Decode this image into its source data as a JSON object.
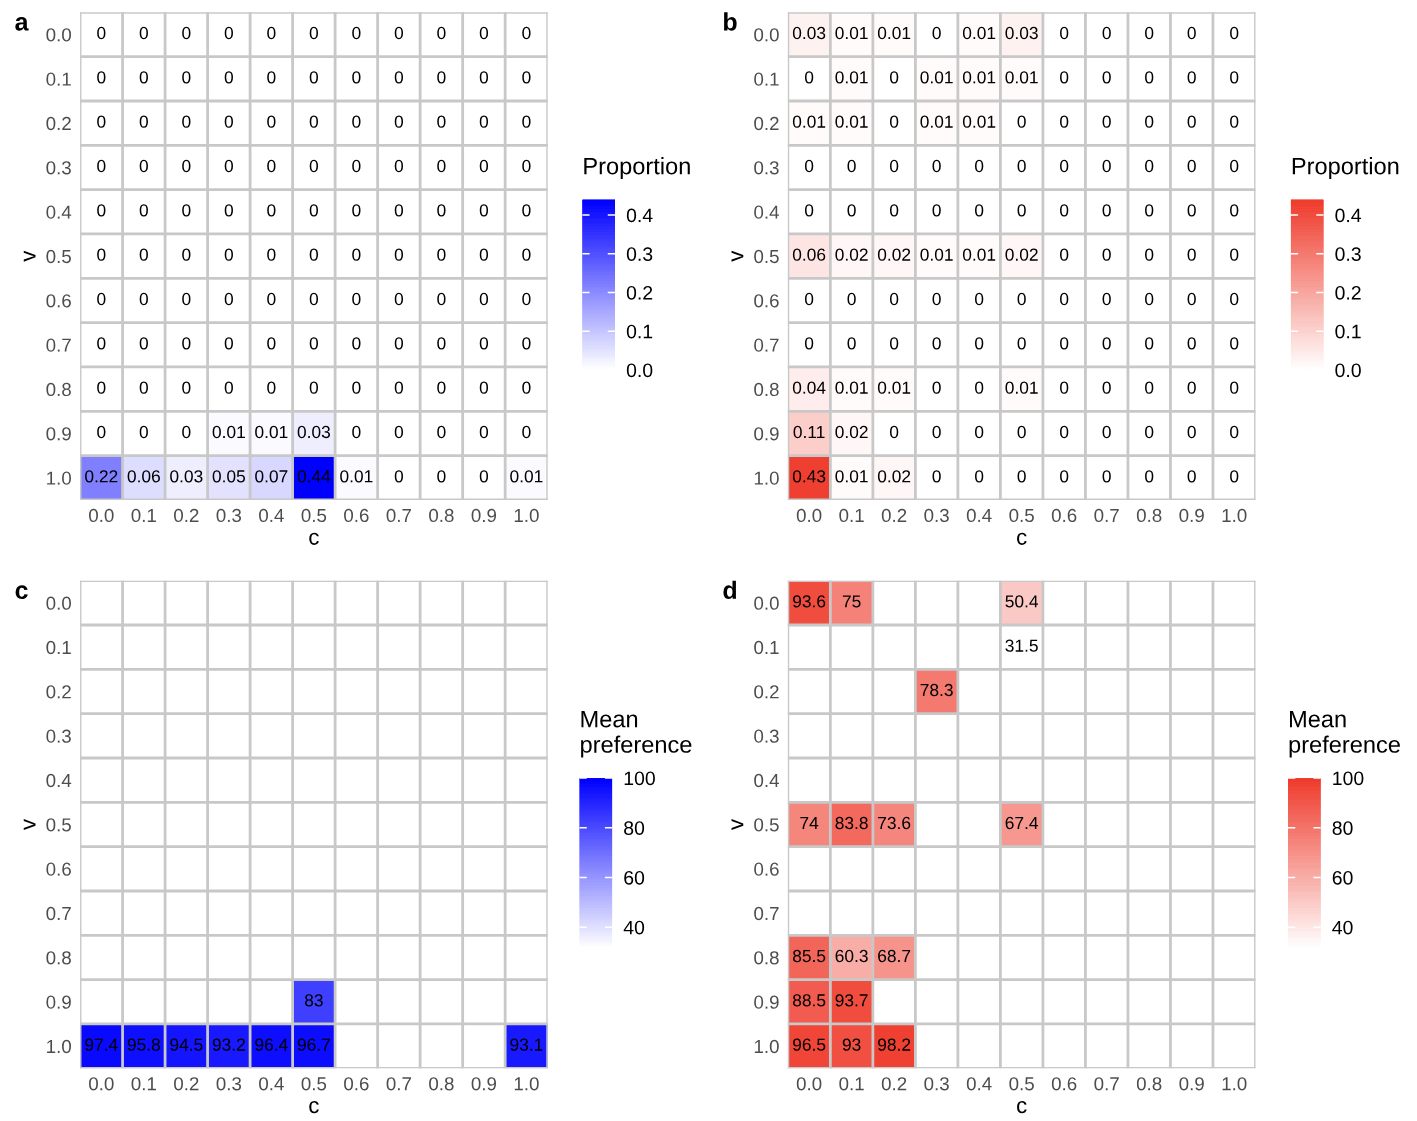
{
  "chart_data": [
    {
      "type": "heatmap",
      "title": "a",
      "xlabel": "c",
      "ylabel": "v",
      "clabel": "Proportion",
      "color": "#0000ff",
      "data_labels": true,
      "grid": true,
      "categories": [
        "0.0",
        "0.1",
        "0.2",
        "0.3",
        "0.4",
        "0.5",
        "0.6",
        "0.7",
        "0.8",
        "0.9",
        "1.0"
      ],
      "y_categories": [
        "0.0",
        "0.1",
        "0.2",
        "0.3",
        "0.4",
        "0.5",
        "0.6",
        "0.7",
        "0.8",
        "0.9",
        "1.0"
      ],
      "cells": [
        [
          0,
          0,
          0,
          0,
          0,
          0,
          0,
          0,
          0,
          0,
          0
        ],
        [
          0,
          0,
          0,
          0,
          0,
          0,
          0,
          0,
          0,
          0,
          0
        ],
        [
          0,
          0,
          0,
          0,
          0,
          0,
          0,
          0,
          0,
          0,
          0
        ],
        [
          0,
          0,
          0,
          0,
          0,
          0,
          0,
          0,
          0,
          0,
          0
        ],
        [
          0,
          0,
          0,
          0,
          0,
          0,
          0,
          0,
          0,
          0,
          0
        ],
        [
          0,
          0,
          0,
          0,
          0,
          0,
          0,
          0,
          0,
          0,
          0
        ],
        [
          0,
          0,
          0,
          0,
          0,
          0,
          0,
          0,
          0,
          0,
          0
        ],
        [
          0,
          0,
          0,
          0,
          0,
          0,
          0,
          0,
          0,
          0,
          0
        ],
        [
          0,
          0,
          0,
          0,
          0,
          0,
          0,
          0,
          0,
          0,
          0
        ],
        [
          0,
          0,
          0,
          0.01,
          0.01,
          0.03,
          0,
          0,
          0,
          0,
          0
        ],
        [
          0.22,
          0.06,
          0.03,
          0.05,
          0.07,
          0.44,
          0.01,
          0,
          0,
          0,
          0.01
        ]
      ],
      "clim": [
        0,
        0.44
      ],
      "cticks": [
        {
          "value": 0,
          "label": "0.0"
        },
        0.1,
        0.2,
        0.3,
        0.4
      ]
    },
    {
      "type": "heatmap",
      "title": "b",
      "xlabel": "c",
      "ylabel": "v",
      "clabel": "Proportion",
      "color": "#ef3b2c",
      "data_labels": true,
      "grid": true,
      "categories": [
        "0.0",
        "0.1",
        "0.2",
        "0.3",
        "0.4",
        "0.5",
        "0.6",
        "0.7",
        "0.8",
        "0.9",
        "1.0"
      ],
      "y_categories": [
        "0.0",
        "0.1",
        "0.2",
        "0.3",
        "0.4",
        "0.5",
        "0.6",
        "0.7",
        "0.8",
        "0.9",
        "1.0"
      ],
      "cells": [
        [
          0.03,
          0.01,
          0.01,
          0,
          0.01,
          0.03,
          0,
          0,
          0,
          0,
          0
        ],
        [
          0,
          0.01,
          0,
          0.01,
          0.01,
          0.01,
          0,
          0,
          0,
          0,
          0
        ],
        [
          0.01,
          0.01,
          0,
          0.01,
          0.01,
          0,
          0,
          0,
          0,
          0,
          0
        ],
        [
          0,
          0,
          0,
          0,
          0,
          0,
          0,
          0,
          0,
          0,
          0
        ],
        [
          0,
          0,
          0,
          0,
          0,
          0,
          0,
          0,
          0,
          0,
          0
        ],
        [
          0.06,
          0.02,
          0.02,
          0.01,
          0.01,
          0.02,
          0,
          0,
          0,
          0,
          0
        ],
        [
          0,
          0,
          0,
          0,
          0,
          0,
          0,
          0,
          0,
          0,
          0
        ],
        [
          0,
          0,
          0,
          0,
          0,
          0,
          0,
          0,
          0,
          0,
          0
        ],
        [
          0.04,
          0.01,
          0.01,
          0,
          0,
          0.01,
          0,
          0,
          0,
          0,
          0
        ],
        [
          0.11,
          0.02,
          0,
          0,
          0,
          0,
          0,
          0,
          0,
          0,
          0
        ],
        [
          0.43,
          0.01,
          0.02,
          0,
          0,
          0,
          0,
          0,
          0,
          0,
          0
        ]
      ],
      "clim": [
        0,
        0.44
      ],
      "cticks": [
        {
          "value": 0,
          "label": "0.0"
        },
        0.1,
        0.2,
        0.3,
        0.4
      ]
    },
    {
      "type": "heatmap",
      "title": "c",
      "xlabel": "c",
      "ylabel": "v",
      "clabel": "Mean\npreference",
      "color": "#0000ff",
      "data_labels": true,
      "grid": true,
      "categories": [
        "0.0",
        "0.1",
        "0.2",
        "0.3",
        "0.4",
        "0.5",
        "0.6",
        "0.7",
        "0.8",
        "0.9",
        "1.0"
      ],
      "y_categories": [
        "0.0",
        "0.1",
        "0.2",
        "0.3",
        "0.4",
        "0.5",
        "0.6",
        "0.7",
        "0.8",
        "0.9",
        "1.0"
      ],
      "cells": [
        [
          null,
          null,
          null,
          null,
          null,
          null,
          null,
          null,
          null,
          null,
          null
        ],
        [
          null,
          null,
          null,
          null,
          null,
          null,
          null,
          null,
          null,
          null,
          null
        ],
        [
          null,
          null,
          null,
          null,
          null,
          null,
          null,
          null,
          null,
          null,
          null
        ],
        [
          null,
          null,
          null,
          null,
          null,
          null,
          null,
          null,
          null,
          null,
          null
        ],
        [
          null,
          null,
          null,
          null,
          null,
          null,
          null,
          null,
          null,
          null,
          null
        ],
        [
          null,
          null,
          null,
          null,
          null,
          null,
          null,
          null,
          null,
          null,
          null
        ],
        [
          null,
          null,
          null,
          null,
          null,
          null,
          null,
          null,
          null,
          null,
          null
        ],
        [
          null,
          null,
          null,
          null,
          null,
          null,
          null,
          null,
          null,
          null,
          null
        ],
        [
          null,
          null,
          null,
          null,
          null,
          null,
          null,
          null,
          null,
          null,
          null
        ],
        [
          null,
          null,
          null,
          null,
          null,
          83,
          null,
          null,
          null,
          null,
          null
        ],
        [
          97.4,
          95.8,
          94.5,
          93.2,
          96.4,
          96.7,
          null,
          null,
          null,
          null,
          93.1
        ]
      ],
      "clim": [
        31.5,
        100
      ],
      "cticks": [
        40,
        60,
        80,
        100
      ]
    },
    {
      "type": "heatmap",
      "title": "d",
      "xlabel": "c",
      "ylabel": "v",
      "clabel": "Mean\npreference",
      "color": "#ef3b2c",
      "data_labels": true,
      "grid": true,
      "categories": [
        "0.0",
        "0.1",
        "0.2",
        "0.3",
        "0.4",
        "0.5",
        "0.6",
        "0.7",
        "0.8",
        "0.9",
        "1.0"
      ],
      "y_categories": [
        "0.0",
        "0.1",
        "0.2",
        "0.3",
        "0.4",
        "0.5",
        "0.6",
        "0.7",
        "0.8",
        "0.9",
        "1.0"
      ],
      "cells": [
        [
          93.6,
          75,
          null,
          null,
          null,
          50.4,
          null,
          null,
          null,
          null,
          null
        ],
        [
          null,
          null,
          null,
          null,
          null,
          31.5,
          null,
          null,
          null,
          null,
          null
        ],
        [
          null,
          null,
          null,
          78.3,
          null,
          null,
          null,
          null,
          null,
          null,
          null
        ],
        [
          null,
          null,
          null,
          null,
          null,
          null,
          null,
          null,
          null,
          null,
          null
        ],
        [
          null,
          null,
          null,
          null,
          null,
          null,
          null,
          null,
          null,
          null,
          null
        ],
        [
          74,
          83.8,
          73.6,
          null,
          null,
          67.4,
          null,
          null,
          null,
          null,
          null
        ],
        [
          null,
          null,
          null,
          null,
          null,
          null,
          null,
          null,
          null,
          null,
          null
        ],
        [
          null,
          null,
          null,
          null,
          null,
          null,
          null,
          null,
          null,
          null,
          null
        ],
        [
          85.5,
          60.3,
          68.7,
          null,
          null,
          null,
          null,
          null,
          null,
          null,
          null
        ],
        [
          88.5,
          93.7,
          null,
          null,
          null,
          null,
          null,
          null,
          null,
          null,
          null
        ],
        [
          96.5,
          93,
          98.2,
          null,
          null,
          null,
          null,
          null,
          null,
          null,
          null
        ]
      ],
      "clim": [
        31.5,
        100
      ],
      "cticks": [
        40,
        60,
        80,
        100
      ]
    }
  ]
}
